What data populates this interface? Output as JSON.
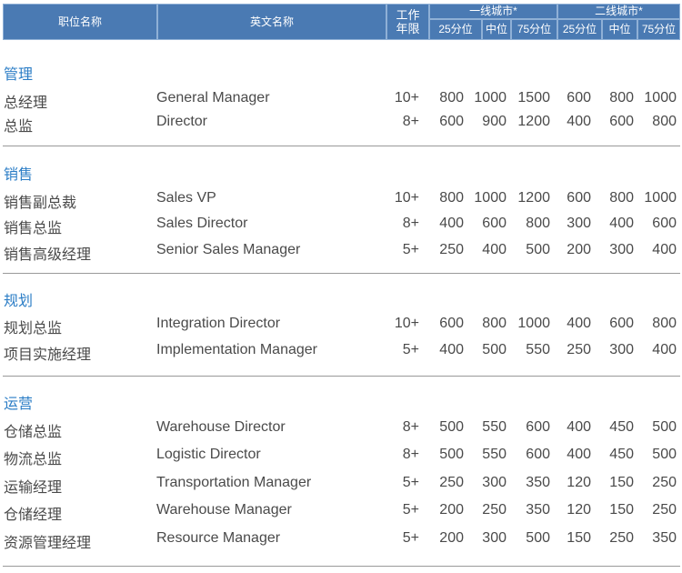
{
  "header": {
    "position": "职位名称",
    "english": "英文名称",
    "years": "工作\n年限",
    "tier1": "一线城市*",
    "tier2": "二线城市*",
    "p25": "25分位",
    "mid": "中位",
    "p75": "75分位"
  },
  "sections": [
    {
      "title": "管理",
      "rows": [
        [
          "总经理",
          "General Manager",
          "10+",
          "800",
          "1000",
          "1500",
          "600",
          "800",
          "1000"
        ],
        [
          "总监",
          "Director",
          "8+",
          "600",
          "900",
          "1200",
          "400",
          "600",
          "800"
        ]
      ]
    },
    {
      "title": "销售",
      "rows": [
        [
          "销售副总裁",
          "Sales VP",
          "10+",
          "800",
          "1000",
          "1200",
          "600",
          "800",
          "1000"
        ],
        [
          "销售总监",
          "Sales Director",
          "8+",
          "400",
          "600",
          "800",
          "300",
          "400",
          "600"
        ],
        [
          "销售高级经理",
          "Senior Sales Manager",
          "5+",
          "250",
          "400",
          "500",
          "200",
          "300",
          "400"
        ]
      ]
    },
    {
      "title": "规划",
      "rows": [
        [
          "规划总监",
          "Integration Director",
          "10+",
          "600",
          "800",
          "1000",
          "400",
          "600",
          "800"
        ],
        [
          "项目实施经理",
          "Implementation Manager",
          "5+",
          "400",
          "500",
          "550",
          "250",
          "300",
          "400"
        ]
      ]
    },
    {
      "title": "运营",
      "rows": [
        [
          "仓储总监",
          "Warehouse Director",
          "8+",
          "500",
          "550",
          "600",
          "400",
          "450",
          "500"
        ],
        [
          "物流总监",
          "Logistic Director",
          "8+",
          "500",
          "550",
          "600",
          "400",
          "450",
          "500"
        ],
        [
          "运输经理",
          "Transportation Manager",
          "5+",
          "250",
          "300",
          "350",
          "120",
          "150",
          "250"
        ],
        [
          "仓储经理",
          "Warehouse Manager",
          "5+",
          "200",
          "250",
          "350",
          "120",
          "150",
          "250"
        ],
        [
          "资源管理经理",
          "Resource Manager",
          "5+",
          "200",
          "300",
          "500",
          "150",
          "250",
          "350"
        ]
      ]
    }
  ],
  "colors": {
    "header_bg": "#4a7ab3",
    "section_title": "#2b7dc6"
  }
}
